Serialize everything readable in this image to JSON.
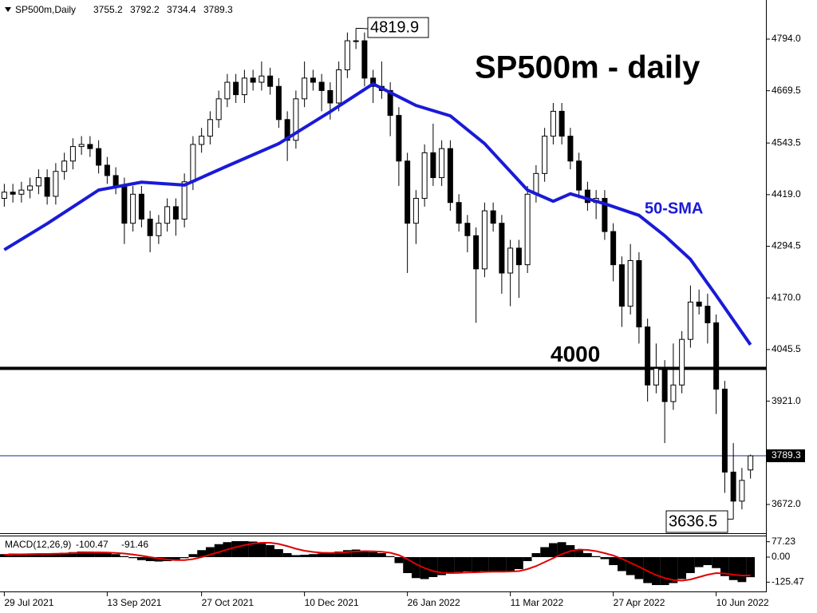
{
  "chart_data": {
    "type": "candlestick",
    "title": "SP500m - daily",
    "symbol": "SP500m,Daily",
    "up_color": "#ffffff",
    "down_color": "#000000",
    "open": [
      4410,
      4425,
      4420,
      4430,
      4440,
      4460,
      4415,
      4475,
      4500,
      4535,
      4540,
      4530,
      4490,
      4465,
      4440,
      4350,
      4420,
      4360,
      4320,
      4350,
      4390,
      4360,
      4450,
      4540,
      4560,
      4600,
      4650,
      4690,
      4660,
      4700,
      4690,
      4705,
      4680,
      4600,
      4550,
      4650,
      4700,
      4690,
      4670,
      4640,
      4720,
      4790,
      4790,
      4700,
      4680,
      4670,
      4610,
      4500,
      4350,
      4410,
      4520,
      4460,
      4530,
      4400,
      4350,
      4320,
      4240,
      4380,
      4350,
      4230,
      4290,
      4250,
      4420,
      4470,
      4560,
      4620,
      4560,
      4500,
      4430,
      4400,
      4410,
      4330,
      4250,
      4150,
      4260,
      4100,
      3960,
      4000,
      3920,
      3960,
      4070,
      4160,
      4150,
      4110,
      3950,
      3750,
      3680,
      3755.2
    ],
    "high": [
      4445,
      4445,
      4450,
      4460,
      4480,
      4480,
      4495,
      4520,
      4555,
      4560,
      4560,
      4550,
      4510,
      4485,
      4460,
      4440,
      4440,
      4380,
      4370,
      4410,
      4410,
      4470,
      4560,
      4580,
      4620,
      4670,
      4710,
      4710,
      4720,
      4720,
      4740,
      4725,
      4700,
      4620,
      4670,
      4740,
      4720,
      4710,
      4690,
      4740,
      4810,
      4819.9,
      4810,
      4720,
      4740,
      4690,
      4630,
      4520,
      4430,
      4540,
      4590,
      4550,
      4550,
      4420,
      4370,
      4340,
      4400,
      4400,
      4370,
      4310,
      4310,
      4440,
      4490,
      4580,
      4640,
      4640,
      4580,
      4520,
      4450,
      4430,
      4430,
      4350,
      4270,
      4300,
      4280,
      4120,
      4060,
      4020,
      4060,
      4090,
      4200,
      4190,
      4180,
      4130,
      3970,
      3820,
      3760,
      3792.2
    ],
    "low": [
      4390,
      4400,
      4400,
      4410,
      4420,
      4395,
      4395,
      4455,
      4480,
      4515,
      4510,
      4470,
      4445,
      4420,
      4300,
      4330,
      4340,
      4280,
      4300,
      4330,
      4320,
      4340,
      4430,
      4520,
      4540,
      4580,
      4630,
      4640,
      4640,
      4670,
      4670,
      4660,
      4580,
      4500,
      4530,
      4630,
      4670,
      4620,
      4600,
      4620,
      4700,
      4770,
      4680,
      4640,
      4650,
      4560,
      4440,
      4230,
      4300,
      4390,
      4440,
      4440,
      4380,
      4330,
      4280,
      4110,
      4220,
      4330,
      4180,
      4150,
      4170,
      4230,
      4400,
      4450,
      4540,
      4540,
      4480,
      4410,
      4380,
      4360,
      4310,
      4210,
      4100,
      4130,
      4060,
      3920,
      3940,
      3820,
      3900,
      3940,
      4050,
      4130,
      4060,
      3890,
      3700,
      3636.5,
      3660,
      3734.4
    ],
    "close": [
      4425,
      4420,
      4430,
      4440,
      4460,
      4415,
      4475,
      4500,
      4535,
      4540,
      4530,
      4490,
      4465,
      4440,
      4350,
      4420,
      4360,
      4320,
      4350,
      4390,
      4360,
      4450,
      4540,
      4560,
      4600,
      4650,
      4690,
      4660,
      4700,
      4690,
      4705,
      4680,
      4600,
      4550,
      4650,
      4700,
      4690,
      4670,
      4640,
      4720,
      4790,
      4790,
      4700,
      4680,
      4670,
      4610,
      4500,
      4350,
      4410,
      4520,
      4460,
      4530,
      4400,
      4350,
      4320,
      4240,
      4380,
      4350,
      4230,
      4290,
      4250,
      4420,
      4470,
      4560,
      4620,
      4560,
      4500,
      4430,
      4400,
      4410,
      4330,
      4250,
      4150,
      4260,
      4100,
      3960,
      4000,
      3920,
      3960,
      4070,
      4160,
      4150,
      4110,
      3950,
      3750,
      3680,
      3730,
      3789.3
    ],
    "xlim": [
      -0.5,
      88.8
    ],
    "xticks": [
      {
        "value": 0,
        "label": "29 Jul 2021"
      },
      {
        "value": 12,
        "label": "13 Sep 2021"
      },
      {
        "value": 23,
        "label": "27 Oct 2021"
      },
      {
        "value": 35,
        "label": "10 Dec 2021"
      },
      {
        "value": 47,
        "label": "26 Jan 2022"
      },
      {
        "value": 59,
        "label": "11 Mar 2022"
      },
      {
        "value": 71,
        "label": "27 Apr 2022"
      },
      {
        "value": 83,
        "label": "10 Jun 2022"
      }
    ],
    "ylim": [
      3602.7,
      4888.3
    ],
    "yticks": [
      {
        "value": 4794,
        "label": "4794.0"
      },
      4669.5,
      4543.5,
      {
        "value": 4419,
        "label": "4419.0"
      },
      4294.5,
      {
        "value": 4170,
        "label": "4170.0"
      },
      4045.5,
      {
        "value": 3921,
        "label": "3921.0"
      },
      {
        "value": 3672,
        "label": "3672.0"
      }
    ],
    "sma": {
      "name": "50-SMA",
      "color": "#1a1ad8",
      "x": [
        0,
        5,
        11,
        16,
        21,
        26,
        32,
        38,
        43,
        48,
        52,
        56,
        61,
        64,
        66,
        70,
        74,
        77,
        80,
        83,
        87
      ],
      "values": [
        4286,
        4349,
        4430,
        4449,
        4442,
        4488,
        4542,
        4619,
        4686,
        4634,
        4609,
        4542,
        4430,
        4403,
        4421,
        4397,
        4369,
        4320,
        4263,
        4176,
        4057
      ]
    },
    "hline": {
      "value": 4000
    },
    "macd": {
      "name": "MACD(12,26,9)",
      "ylim": [
        -172,
        108
      ],
      "yticks": [
        77.23,
        {
          "value": 0,
          "label": "0.00"
        },
        -125.47
      ],
      "histogram": [
        15,
        18,
        18,
        17,
        16,
        15,
        20,
        22,
        25,
        28,
        28,
        25,
        20,
        15,
        5,
        -5,
        -15,
        -20,
        -22,
        -20,
        -18,
        -5,
        15,
        35,
        50,
        65,
        75,
        80,
        80,
        78,
        70,
        60,
        40,
        20,
        10,
        12,
        15,
        18,
        20,
        28,
        35,
        38,
        30,
        25,
        20,
        5,
        -30,
        -80,
        -105,
        -110,
        -100,
        -90,
        -80,
        -75,
        -72,
        -75,
        -70,
        -70,
        -75,
        -70,
        -60,
        -20,
        20,
        50,
        70,
        75,
        60,
        40,
        20,
        5,
        -10,
        -40,
        -70,
        -90,
        -110,
        -130,
        -140,
        -140,
        -130,
        -110,
        -80,
        -50,
        -40,
        -55,
        -95,
        -115,
        -125,
        -100.47
      ],
      "signal": {
        "color": "#e00000",
        "values": [
          12,
          13,
          14,
          15,
          16,
          16,
          17,
          18,
          20,
          22,
          23,
          24,
          23,
          21,
          18,
          13,
          7,
          0,
          -7,
          -12,
          -15,
          -15,
          -10,
          0,
          12,
          25,
          38,
          50,
          60,
          68,
          72,
          72,
          66,
          55,
          42,
          32,
          26,
          22,
          21,
          22,
          25,
          28,
          30,
          29,
          27,
          22,
          10,
          -10,
          -35,
          -55,
          -70,
          -78,
          -80,
          -79,
          -77,
          -76,
          -74,
          -73,
          -73,
          -72,
          -70,
          -60,
          -45,
          -25,
          -5,
          15,
          30,
          38,
          36,
          30,
          20,
          8,
          -8,
          -28,
          -48,
          -70,
          -90,
          -105,
          -115,
          -118,
          -112,
          -100,
          -88,
          -80,
          -82,
          -88,
          -92,
          -91.46
        ]
      }
    }
  }
}
